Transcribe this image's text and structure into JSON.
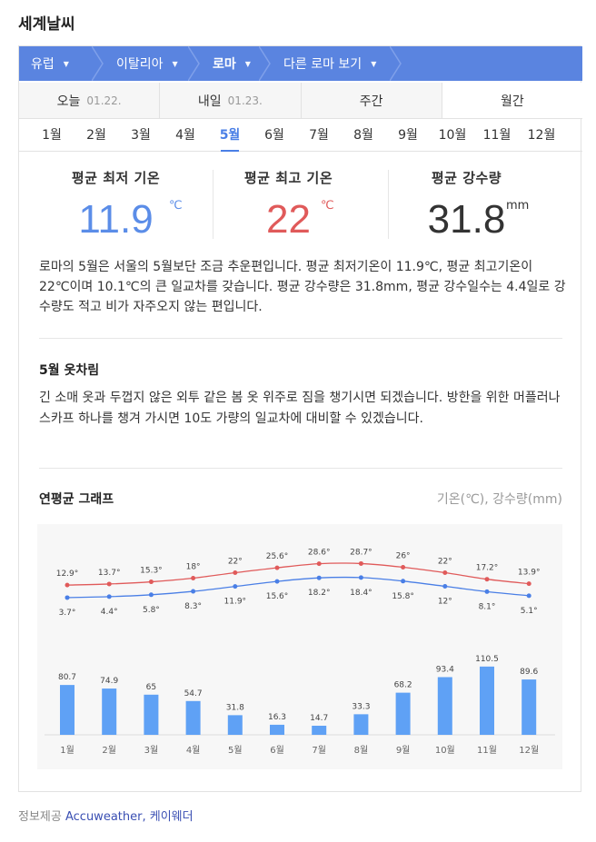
{
  "page_title": "세계날씨",
  "breadcrumb": [
    {
      "label": "유럽"
    },
    {
      "label": "이탈리아"
    },
    {
      "label": "로마"
    },
    {
      "label": "다른 로마 보기"
    }
  ],
  "tabs": [
    {
      "label": "오늘",
      "date": "01.22."
    },
    {
      "label": "내일",
      "date": "01.23."
    },
    {
      "label": "주간",
      "date": ""
    },
    {
      "label": "월간",
      "date": ""
    }
  ],
  "selected_tab": "월간",
  "months": [
    "1월",
    "2월",
    "3월",
    "4월",
    "5월",
    "6월",
    "7월",
    "8월",
    "9월",
    "10월",
    "11월",
    "12월"
  ],
  "selected_month": "5월",
  "stats": {
    "min_label": "평균 최저 기온",
    "min_value": "11.9",
    "min_unit": "℃",
    "max_label": "평균 최고 기온",
    "max_value": "22",
    "max_unit": "℃",
    "rain_label": "평균 강수량",
    "rain_value": "31.8",
    "rain_unit": "mm"
  },
  "description": "로마의 5월은 서울의 5월보단 조금 추운편입니다. 평균 최저기온이 11.9℃, 평균 최고기온이 22℃이며 10.1℃의 큰 일교차를 갖습니다. 평균 강수량은 31.8mm, 평균 강수일수는 4.4일로 강수량도 적고 비가 자주오지 않는 편입니다.",
  "outfit": {
    "title": "5월 옷차림",
    "text": "긴 소매 옷과 두껍지 않은 외투 같은 봄 옷 위주로 짐을 챙기시면 되겠습니다. 방한을 위한 머플러나 스카프 하나를 챙겨 가시면 10도 가량의 일교차에 대비할 수 있겠습니다."
  },
  "graph": {
    "title": "연평균 그래프",
    "units": "기온(℃), 강수량(mm)"
  },
  "colors": {
    "accent": "#5a84e0",
    "max_temp": "#e05a5a",
    "min_temp": "#4a7fe6",
    "rain_bar": "#5fa1f5"
  },
  "chart_data": {
    "type": "line+bar",
    "categories": [
      "1월",
      "2월",
      "3월",
      "4월",
      "5월",
      "6월",
      "7월",
      "8월",
      "9월",
      "10월",
      "11월",
      "12월"
    ],
    "series": [
      {
        "values": [
          12.9,
          13.7,
          15.3,
          18,
          22,
          25.6,
          28.6,
          28.7,
          26,
          22,
          17.2,
          13.9
        ]
      },
      {
        "values": [
          3.7,
          4.4,
          5.8,
          8.3,
          11.9,
          15.6,
          18.2,
          18.4,
          15.8,
          12,
          8.1,
          5.1
        ]
      },
      {
        "values": [
          80.7,
          74.9,
          65,
          54.7,
          31.8,
          16.3,
          14.7,
          33.3,
          68.2,
          93.4,
          110.5,
          89.6
        ]
      }
    ],
    "max_labels": [
      "12.9°",
      "13.7°",
      "15.3°",
      "18°",
      "22°",
      "25.6°",
      "28.6°",
      "28.7°",
      "26°",
      "22°",
      "17.2°",
      "13.9°"
    ],
    "min_labels": [
      "3.7°",
      "4.4°",
      "5.8°",
      "8.3°",
      "11.9°",
      "15.6°",
      "18.2°",
      "18.4°",
      "15.8°",
      "12°",
      "8.1°",
      "5.1°"
    ],
    "rain_labels": [
      "80.7",
      "74.9",
      "65",
      "54.7",
      "31.8",
      "16.3",
      "14.7",
      "33.3",
      "68.2",
      "93.4",
      "110.5",
      "89.6"
    ]
  },
  "footer": {
    "label": "정보제공",
    "source1": "Accuweather,",
    "source2": "케이웨더"
  }
}
